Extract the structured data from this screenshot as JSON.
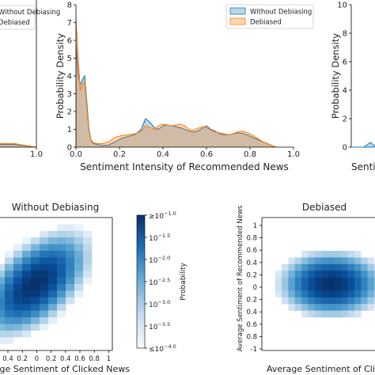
{
  "chart_data": [
    {
      "type": "area",
      "panel": "left-partial",
      "xlabel": "",
      "ylabel": "",
      "xlim": [
        0.0,
        1.0
      ],
      "x_ticks": [
        "1.0"
      ],
      "legend": {
        "placement": "top-left",
        "entries": [
          "Without Debiasing",
          "Debiased"
        ]
      },
      "series": [
        {
          "name": "Without Debiasing",
          "color": "#1f77b4",
          "x": [
            0.0,
            0.9,
            1.0
          ],
          "y": [
            0.2,
            0.15,
            0.0
          ]
        },
        {
          "name": "Debiased",
          "color": "#ff7f0e",
          "x": [
            0.0,
            0.9,
            1.0
          ],
          "y": [
            0.25,
            0.2,
            0.0
          ]
        }
      ]
    },
    {
      "type": "area",
      "panel": "center",
      "xlabel": "Sentiment Intensity of Recommended News",
      "ylabel": "Probability Density",
      "xlim": [
        0.0,
        1.0
      ],
      "ylim": [
        0,
        8
      ],
      "x_ticks": [
        "0.0",
        "0.2",
        "0.4",
        "0.6",
        "0.8",
        "1.0"
      ],
      "y_ticks": [
        "0",
        "1",
        "2",
        "3",
        "4",
        "5",
        "6",
        "7",
        "8"
      ],
      "legend": {
        "placement": "top-right",
        "entries": [
          "Without Debiasing",
          "Debiased"
        ]
      },
      "series": [
        {
          "name": "Without Debiasing",
          "color": "#1f77b4",
          "x": [
            0.0,
            0.01,
            0.02,
            0.03,
            0.04,
            0.05,
            0.06,
            0.07,
            0.08,
            0.1,
            0.12,
            0.15,
            0.18,
            0.21,
            0.24,
            0.27,
            0.3,
            0.32,
            0.34,
            0.36,
            0.38,
            0.4,
            0.42,
            0.44,
            0.46,
            0.48,
            0.5,
            0.52,
            0.54,
            0.56,
            0.58,
            0.6,
            0.62,
            0.64,
            0.66,
            0.68,
            0.7,
            0.72,
            0.74,
            0.76,
            0.78,
            0.8,
            0.82,
            0.84,
            0.86,
            0.88,
            0.9,
            0.92
          ],
          "y": [
            5.9,
            4.1,
            3.5,
            3.8,
            4.0,
            2.5,
            1.0,
            0.35,
            0.2,
            0.15,
            0.1,
            0.12,
            0.3,
            0.5,
            0.6,
            0.7,
            1.0,
            1.6,
            1.4,
            1.1,
            1.0,
            1.2,
            1.25,
            1.2,
            1.15,
            1.1,
            1.0,
            0.9,
            0.85,
            0.9,
            1.05,
            1.2,
            1.0,
            0.9,
            0.75,
            0.7,
            0.7,
            0.75,
            0.8,
            0.78,
            0.72,
            0.62,
            0.5,
            0.4,
            0.3,
            0.2,
            0.1,
            0.0
          ]
        },
        {
          "name": "Debiased",
          "color": "#ff7f0e",
          "x": [
            0.0,
            0.01,
            0.02,
            0.03,
            0.04,
            0.05,
            0.06,
            0.07,
            0.08,
            0.1,
            0.12,
            0.15,
            0.18,
            0.21,
            0.24,
            0.27,
            0.3,
            0.32,
            0.34,
            0.36,
            0.38,
            0.4,
            0.42,
            0.44,
            0.46,
            0.48,
            0.5,
            0.52,
            0.54,
            0.56,
            0.58,
            0.6,
            0.62,
            0.64,
            0.66,
            0.68,
            0.7,
            0.72,
            0.74,
            0.76,
            0.78,
            0.8,
            0.82,
            0.84,
            0.86,
            0.88,
            0.9,
            0.92
          ],
          "y": [
            7.2,
            5.0,
            3.2,
            3.5,
            3.7,
            2.2,
            0.9,
            0.4,
            0.25,
            0.2,
            0.2,
            0.3,
            0.55,
            0.65,
            0.7,
            0.75,
            0.9,
            1.2,
            1.1,
            1.0,
            1.2,
            1.3,
            1.25,
            1.2,
            1.25,
            1.3,
            1.2,
            1.0,
            0.95,
            1.05,
            1.15,
            1.1,
            0.95,
            0.85,
            0.8,
            0.75,
            0.7,
            0.75,
            0.85,
            0.9,
            0.85,
            0.75,
            0.6,
            0.45,
            0.3,
            0.2,
            0.1,
            0.0
          ]
        }
      ]
    },
    {
      "type": "area",
      "panel": "right-partial",
      "xlabel": "Senti",
      "ylabel": "Probability Density",
      "ylim": [
        0,
        10
      ],
      "y_ticks": [
        "0",
        "2",
        "4",
        "6",
        "8",
        "10"
      ],
      "series": []
    },
    {
      "type": "heatmap",
      "panel": "bottom-left",
      "title": "Without Debiasing",
      "xlabel": "Average Sentiment of Clicked News",
      "x_ticks": [
        "0.4",
        "0.2",
        "0",
        "0.2",
        "0.4",
        "0.6",
        "0.8",
        "1"
      ],
      "grid_range": [
        -1,
        1
      ],
      "colormap": "Blues",
      "peak": {
        "x": -0.05,
        "y": 0.0
      },
      "spread": {
        "x": 0.28,
        "y": 0.35
      },
      "correlation": 0.55,
      "log_probability_range": [
        -4.0,
        -1.0
      ]
    },
    {
      "type": "colorbar",
      "label": "Probability",
      "scale": "log",
      "range": [
        -4.0,
        -1.0
      ],
      "ticks": [
        "≥10",
        "10",
        "10",
        "10",
        "10",
        "10",
        "≤10"
      ],
      "tick_exponents": [
        "−1.0",
        "−1.5",
        "−2.0",
        "−2.5",
        "−3.0",
        "−3.5",
        "−4.0"
      ]
    },
    {
      "type": "heatmap",
      "panel": "bottom-right",
      "title": "Debiased",
      "xlabel": "Average Sentiment of Clicked",
      "ylabel": "Average Sentiment of Recommended News",
      "y_ticks": [
        "1",
        "0.8",
        "0.6",
        "0.4",
        "0.2",
        "0",
        "0.2",
        "0.4",
        "0.6",
        "0.8",
        "-1"
      ],
      "grid_range": [
        -1,
        1
      ],
      "colormap": "Blues",
      "peak": {
        "x": 0.05,
        "y": 0.0
      },
      "spread": {
        "x": 0.35,
        "y": 0.22
      },
      "correlation": 0.0,
      "log_probability_range": [
        -4.0,
        -1.0
      ]
    }
  ]
}
